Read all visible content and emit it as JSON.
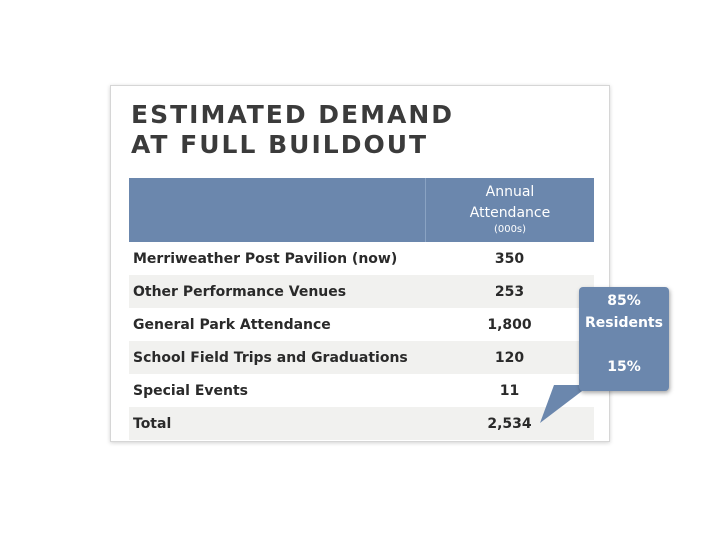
{
  "title": {
    "line1": "ESTIMATED DEMAND",
    "line2": "AT FULL BUILDOUT"
  },
  "table": {
    "header": {
      "line1": "Annual",
      "line2": "Attendance",
      "unit": "(000s)"
    },
    "rows": [
      {
        "label": "Merriweather Post Pavilion (now)",
        "value": "350"
      },
      {
        "label": "Other Performance Venues",
        "value": "253"
      },
      {
        "label": "General Park Attendance",
        "value": "1,800"
      },
      {
        "label": "School Field Trips and Graduations",
        "value": "120"
      },
      {
        "label": "Special Events",
        "value": "11"
      },
      {
        "label": "Total",
        "value": "2,534"
      }
    ]
  },
  "callout": {
    "line1": "85%",
    "line2": "Residents",
    "line3": "15%"
  },
  "colors": {
    "header_fill": "#6b87ad",
    "callout_fill": "#6b87ad",
    "alt_row": "#f1f1ef",
    "title_text": "#3b3b3b"
  }
}
